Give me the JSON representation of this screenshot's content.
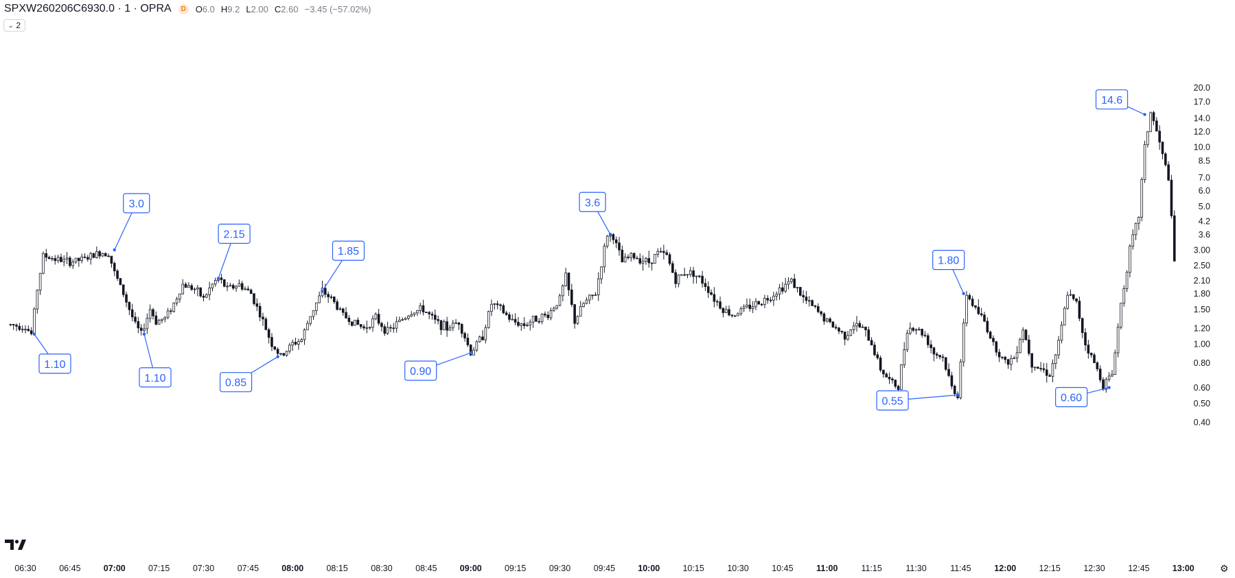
{
  "header": {
    "symbol": "SPXW260206C6930.0 · 1 · OPRA",
    "badge": "D",
    "open_key": "O",
    "open": "6.0",
    "high_key": "H",
    "high": "9.2",
    "low_key": "L",
    "low": "2.00",
    "close_key": "C",
    "close": "2.60",
    "change": "−3.45 (−57.02%)"
  },
  "collapse_button": {
    "count": "2"
  },
  "price_axis": {
    "scale": "log",
    "labels": [
      "20.0",
      "17.0",
      "14.0",
      "12.0",
      "10.0",
      "8.5",
      "7.0",
      "6.0",
      "5.0",
      "4.2",
      "3.6",
      "3.00",
      "2.50",
      "2.10",
      "1.80",
      "1.50",
      "1.20",
      "1.00",
      "0.80",
      "0.60",
      "0.50",
      "0.40"
    ]
  },
  "time_axis": {
    "labels": [
      "06:30",
      "06:45",
      "07:00",
      "07:15",
      "07:30",
      "07:45",
      "08:00",
      "08:15",
      "08:30",
      "08:45",
      "09:00",
      "09:15",
      "09:30",
      "09:45",
      "10:00",
      "10:15",
      "10:30",
      "10:45",
      "11:00",
      "11:15",
      "11:30",
      "11:45",
      "12:00",
      "12:15",
      "12:30",
      "12:45",
      "13:00"
    ],
    "bold": [
      "07:00",
      "08:00",
      "09:00",
      "10:00",
      "11:00",
      "12:00",
      "13:00"
    ]
  },
  "annotations": [
    {
      "label": "1.10",
      "time": "06:33",
      "price": 1.12
    },
    {
      "label": "3.0",
      "time": "07:00",
      "price": 3.0
    },
    {
      "label": "1.10",
      "time": "07:10",
      "price": 1.12
    },
    {
      "label": "2.15",
      "time": "07:35",
      "price": 2.15
    },
    {
      "label": "0.85",
      "time": "07:55",
      "price": 0.86
    },
    {
      "label": "1.85",
      "time": "08:10",
      "price": 1.85
    },
    {
      "label": "0.90",
      "time": "09:00",
      "price": 0.9
    },
    {
      "label": "3.6",
      "time": "09:47",
      "price": 3.6
    },
    {
      "label": "1.80",
      "time": "11:46",
      "price": 1.8
    },
    {
      "label": "0.55",
      "time": "11:44",
      "price": 0.55
    },
    {
      "label": "0.60",
      "time": "12:35",
      "price": 0.6
    },
    {
      "label": "14.6",
      "time": "12:47",
      "price": 14.6
    }
  ],
  "chart_data": {
    "type": "candlestick",
    "xlabel": "",
    "ylabel": "",
    "yscale": "log",
    "ylim": [
      0.4,
      20.0
    ],
    "xlim": [
      "06:30",
      "13:00"
    ],
    "interval": "1 minute",
    "grid": false,
    "series": [
      {
        "path": [
          [
            "06:25",
            1.25
          ],
          [
            "06:30",
            1.22
          ],
          [
            "06:32",
            1.12
          ],
          [
            "06:34",
            1.9
          ],
          [
            "06:36",
            2.8
          ],
          [
            "06:40",
            2.7
          ],
          [
            "06:45",
            2.6
          ],
          [
            "06:50",
            2.7
          ],
          [
            "06:55",
            2.9
          ],
          [
            "06:58",
            2.9
          ],
          [
            "07:00",
            2.3
          ],
          [
            "07:03",
            1.8
          ],
          [
            "07:05",
            1.5
          ],
          [
            "07:07",
            1.25
          ],
          [
            "07:09",
            1.12
          ],
          [
            "07:12",
            1.5
          ],
          [
            "07:14",
            1.3
          ],
          [
            "07:17",
            1.35
          ],
          [
            "07:20",
            1.6
          ],
          [
            "07:23",
            2.0
          ],
          [
            "07:27",
            1.9
          ],
          [
            "07:30",
            1.7
          ],
          [
            "07:33",
            2.0
          ],
          [
            "07:35",
            2.15
          ],
          [
            "07:38",
            1.9
          ],
          [
            "07:42",
            2.0
          ],
          [
            "07:46",
            1.8
          ],
          [
            "07:50",
            1.3
          ],
          [
            "07:53",
            1.0
          ],
          [
            "07:56",
            0.86
          ],
          [
            "08:00",
            1.0
          ],
          [
            "08:03",
            1.05
          ],
          [
            "08:06",
            1.4
          ],
          [
            "08:10",
            1.85
          ],
          [
            "08:13",
            1.7
          ],
          [
            "08:17",
            1.4
          ],
          [
            "08:20",
            1.3
          ],
          [
            "08:24",
            1.2
          ],
          [
            "08:28",
            1.35
          ],
          [
            "08:32",
            1.15
          ],
          [
            "08:36",
            1.3
          ],
          [
            "08:40",
            1.45
          ],
          [
            "08:44",
            1.5
          ],
          [
            "08:48",
            1.3
          ],
          [
            "08:52",
            1.2
          ],
          [
            "08:56",
            1.3
          ],
          [
            "09:00",
            0.9
          ],
          [
            "09:04",
            1.1
          ],
          [
            "09:07",
            1.6
          ],
          [
            "09:10",
            1.5
          ],
          [
            "09:14",
            1.3
          ],
          [
            "09:18",
            1.25
          ],
          [
            "09:22",
            1.35
          ],
          [
            "09:26",
            1.4
          ],
          [
            "09:30",
            1.7
          ],
          [
            "09:32",
            2.2
          ],
          [
            "09:35",
            1.3
          ],
          [
            "09:38",
            1.6
          ],
          [
            "09:42",
            1.8
          ],
          [
            "09:46",
            3.6
          ],
          [
            "09:48",
            3.5
          ],
          [
            "09:51",
            2.6
          ],
          [
            "09:54",
            2.8
          ],
          [
            "09:57",
            2.7
          ],
          [
            "10:00",
            2.6
          ],
          [
            "10:03",
            2.9
          ],
          [
            "10:06",
            2.8
          ],
          [
            "10:09",
            2.1
          ],
          [
            "10:12",
            2.3
          ],
          [
            "10:15",
            2.3
          ],
          [
            "10:19",
            2.0
          ],
          [
            "10:22",
            1.7
          ],
          [
            "10:25",
            1.5
          ],
          [
            "10:28",
            1.4
          ],
          [
            "10:32",
            1.5
          ],
          [
            "10:36",
            1.6
          ],
          [
            "10:40",
            1.7
          ],
          [
            "10:44",
            1.9
          ],
          [
            "10:48",
            2.1
          ],
          [
            "10:52",
            1.7
          ],
          [
            "10:56",
            1.5
          ],
          [
            "11:00",
            1.3
          ],
          [
            "11:03",
            1.2
          ],
          [
            "11:06",
            1.1
          ],
          [
            "11:09",
            1.25
          ],
          [
            "11:12",
            1.2
          ],
          [
            "11:15",
            1.0
          ],
          [
            "11:18",
            0.75
          ],
          [
            "11:21",
            0.65
          ],
          [
            "11:24",
            0.6
          ],
          [
            "11:27",
            1.2
          ],
          [
            "11:30",
            1.2
          ],
          [
            "11:33",
            1.1
          ],
          [
            "11:36",
            0.9
          ],
          [
            "11:39",
            0.85
          ],
          [
            "11:42",
            0.6
          ],
          [
            "11:44",
            0.55
          ],
          [
            "11:47",
            1.8
          ],
          [
            "11:50",
            1.5
          ],
          [
            "11:53",
            1.3
          ],
          [
            "11:56",
            1.0
          ],
          [
            "12:00",
            0.8
          ],
          [
            "12:03",
            0.85
          ],
          [
            "12:06",
            1.2
          ],
          [
            "12:09",
            0.8
          ],
          [
            "12:12",
            0.75
          ],
          [
            "12:15",
            0.7
          ],
          [
            "12:18",
            1.0
          ],
          [
            "12:21",
            1.8
          ],
          [
            "12:24",
            1.6
          ],
          [
            "12:27",
            1.0
          ],
          [
            "12:30",
            0.8
          ],
          [
            "12:33",
            0.62
          ],
          [
            "12:36",
            0.7
          ],
          [
            "12:39",
            1.6
          ],
          [
            "12:42",
            3.0
          ],
          [
            "12:45",
            4.5
          ],
          [
            "12:47",
            10.0
          ],
          [
            "12:49",
            15.0
          ],
          [
            "12:51",
            12.0
          ],
          [
            "12:53",
            9.0
          ],
          [
            "12:55",
            7.0
          ],
          [
            "12:57",
            2.6
          ]
        ]
      }
    ]
  }
}
